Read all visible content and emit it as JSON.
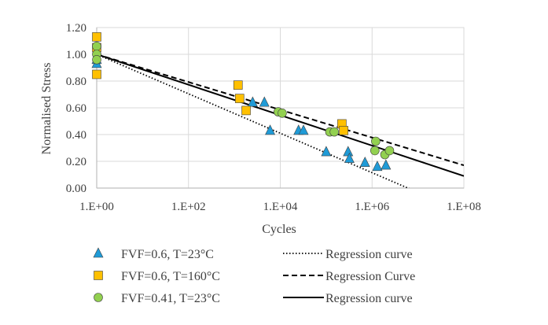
{
  "chart_data": {
    "type": "scatter",
    "xscale": "log10",
    "xlim": [
      1,
      100000000
    ],
    "ylim": [
      0,
      1.2
    ],
    "grid": true,
    "xlabel": "Cycles",
    "ylabel": "Normalised Stress",
    "x_ticks": [
      {
        "value": 1,
        "label": "1.E+00"
      },
      {
        "value": 100,
        "label": "1.E+02"
      },
      {
        "value": 10000,
        "label": "1.E+04"
      },
      {
        "value": 1000000,
        "label": "1.E+06"
      },
      {
        "value": 100000000,
        "label": "1.E+08"
      }
    ],
    "y_ticks": [
      {
        "value": 0,
        "label": "0.00"
      },
      {
        "value": 0.2,
        "label": "0.20"
      },
      {
        "value": 0.4,
        "label": "0.40"
      },
      {
        "value": 0.6,
        "label": "0.60"
      },
      {
        "value": 0.8,
        "label": "0.80"
      },
      {
        "value": 1.0,
        "label": "1.00"
      },
      {
        "value": 1.2,
        "label": "1.20"
      }
    ],
    "series": [
      {
        "name": "FVF=0.6, T=23°C",
        "marker": "triangle",
        "color": "#1f9bd7",
        "points": [
          [
            1,
            0.93
          ],
          [
            1,
            0.96
          ],
          [
            2500,
            0.64
          ],
          [
            4500,
            0.64
          ],
          [
            6000,
            0.43
          ],
          [
            25000,
            0.43
          ],
          [
            32000,
            0.43
          ],
          [
            100000,
            0.27
          ],
          [
            300000,
            0.27
          ],
          [
            320000,
            0.22
          ],
          [
            700000,
            0.19
          ],
          [
            1300000,
            0.16
          ],
          [
            2000000,
            0.17
          ]
        ]
      },
      {
        "name": "FVF=0.6, T=160°C",
        "marker": "square",
        "color": "#ffc000",
        "points": [
          [
            1,
            1.13
          ],
          [
            1,
            1.05
          ],
          [
            1,
            0.85
          ],
          [
            1200,
            0.77
          ],
          [
            1300,
            0.67
          ],
          [
            1800,
            0.58
          ],
          [
            220000,
            0.48
          ],
          [
            240000,
            0.43
          ]
        ]
      },
      {
        "name": "FVF=0.41, T=23°C",
        "marker": "circle",
        "color": "#92d050",
        "points": [
          [
            1,
            1.06
          ],
          [
            1,
            1.0
          ],
          [
            1,
            0.96
          ],
          [
            9000,
            0.57
          ],
          [
            11000,
            0.56
          ],
          [
            120000,
            0.42
          ],
          [
            150000,
            0.42
          ],
          [
            1200000,
            0.35
          ],
          [
            1150000,
            0.28
          ],
          [
            1900000,
            0.25
          ],
          [
            2400000,
            0.28
          ]
        ]
      }
    ],
    "regression_lines": [
      {
        "name": "Regression curve",
        "style": "dotted",
        "from": [
          1,
          1.0
        ],
        "to": [
          100000000,
          -0.18
        ]
      },
      {
        "name": "Regression Curve",
        "style": "dashed",
        "from": [
          1,
          1.0
        ],
        "to": [
          100000000,
          0.17
        ]
      },
      {
        "name": "Regression curve",
        "style": "solid",
        "from": [
          1,
          1.0
        ],
        "to": [
          100000000,
          0.09
        ]
      }
    ]
  },
  "colors": {
    "axis": "#bfbfbf",
    "grid": "#d9d9d9",
    "marker_stroke": "#404040",
    "line": "#000000"
  }
}
